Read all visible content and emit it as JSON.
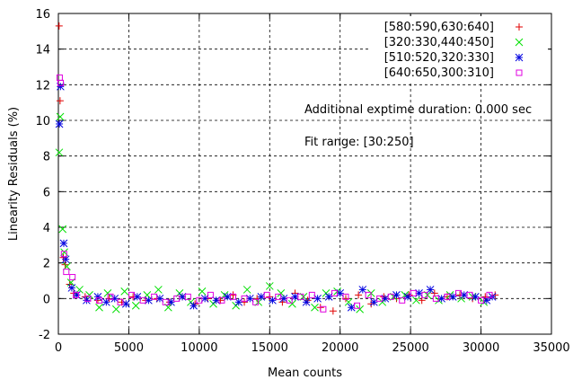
{
  "chart_data": {
    "type": "scatter",
    "xlabel": "Mean counts",
    "ylabel": "Linearity Residuals (%)",
    "xlim": [
      0,
      35000
    ],
    "ylim": [
      -2,
      16
    ],
    "xticks": [
      "0",
      "5000",
      "10000",
      "15000",
      "20000",
      "25000",
      "30000",
      "35000"
    ],
    "yticks": [
      "-2",
      "0",
      "2",
      "4",
      "6",
      "8",
      "10",
      "12",
      "14",
      "16"
    ],
    "grid": true,
    "legend_position": "top-right",
    "annotations": [
      "Additional exptime duration: 0.000 sec",
      "Fit range: [30:250]"
    ],
    "series": [
      {
        "name": "[580:590,630:640]",
        "color": "#e00000",
        "marker": "plus",
        "points": [
          [
            50,
            15.3
          ],
          [
            120,
            11.1
          ],
          [
            350,
            2.3
          ],
          [
            480,
            1.9
          ],
          [
            800,
            0.8
          ],
          [
            1100,
            0.3
          ],
          [
            1900,
            0.1
          ],
          [
            2800,
            -0.1
          ],
          [
            3600,
            0.0
          ],
          [
            4500,
            -0.2
          ],
          [
            5300,
            0.1
          ],
          [
            6200,
            -0.1
          ],
          [
            7000,
            0.0
          ],
          [
            7900,
            -0.2
          ],
          [
            8800,
            0.1
          ],
          [
            9700,
            -0.3
          ],
          [
            10600,
            0.0
          ],
          [
            11500,
            -0.1
          ],
          [
            12400,
            0.2
          ],
          [
            13200,
            -0.2
          ],
          [
            14100,
            0.0
          ],
          [
            15000,
            0.1
          ],
          [
            15900,
            -0.2
          ],
          [
            16800,
            0.3
          ],
          [
            17700,
            -0.1
          ],
          [
            18600,
            -0.5
          ],
          [
            19500,
            -0.7
          ],
          [
            20400,
            0.0
          ],
          [
            21300,
            0.2
          ],
          [
            22200,
            -0.3
          ],
          [
            23100,
            0.1
          ],
          [
            24000,
            0.0
          ],
          [
            24900,
            0.2
          ],
          [
            25800,
            -0.1
          ],
          [
            26700,
            0.3
          ],
          [
            27600,
            0.1
          ],
          [
            28500,
            0.2
          ],
          [
            29400,
            0.0
          ],
          [
            30300,
            0.1
          ],
          [
            31000,
            0.2
          ]
        ]
      },
      {
        "name": "[320:330,440:450]",
        "color": "#00e000",
        "marker": "cross",
        "points": [
          [
            60,
            8.2
          ],
          [
            130,
            10.2
          ],
          [
            300,
            3.9
          ],
          [
            420,
            2.6
          ],
          [
            600,
            1.8
          ],
          [
            900,
            0.9
          ],
          [
            1500,
            0.5
          ],
          [
            2200,
            0.2
          ],
          [
            2900,
            -0.5
          ],
          [
            3500,
            0.3
          ],
          [
            4100,
            -0.6
          ],
          [
            4700,
            0.4
          ],
          [
            5500,
            -0.4
          ],
          [
            6300,
            0.2
          ],
          [
            7100,
            0.5
          ],
          [
            7800,
            -0.5
          ],
          [
            8600,
            0.3
          ],
          [
            9400,
            -0.2
          ],
          [
            10200,
            0.4
          ],
          [
            11000,
            -0.3
          ],
          [
            11800,
            0.2
          ],
          [
            12600,
            -0.4
          ],
          [
            13400,
            0.5
          ],
          [
            14200,
            -0.2
          ],
          [
            15000,
            0.7
          ],
          [
            15800,
            0.3
          ],
          [
            16600,
            -0.3
          ],
          [
            17400,
            0.1
          ],
          [
            18200,
            -0.5
          ],
          [
            19000,
            0.3
          ],
          [
            19800,
            0.4
          ],
          [
            20600,
            -0.2
          ],
          [
            21400,
            -0.6
          ],
          [
            22200,
            0.3
          ],
          [
            23000,
            -0.2
          ],
          [
            23800,
            0.1
          ],
          [
            24600,
            0.2
          ],
          [
            25400,
            -0.1
          ],
          [
            26200,
            0.2
          ],
          [
            27000,
            -0.1
          ],
          [
            27800,
            0.2
          ],
          [
            28600,
            0.0
          ],
          [
            29400,
            0.1
          ],
          [
            30200,
            -0.2
          ]
        ]
      },
      {
        "name": "[510:520,320:330]",
        "color": "#0000e0",
        "marker": "star",
        "points": [
          [
            70,
            9.8
          ],
          [
            150,
            11.9
          ],
          [
            380,
            3.1
          ],
          [
            520,
            2.2
          ],
          [
            950,
            0.6
          ],
          [
            1300,
            0.2
          ],
          [
            2000,
            -0.1
          ],
          [
            2800,
            0.1
          ],
          [
            3400,
            -0.2
          ],
          [
            4000,
            0.0
          ],
          [
            4800,
            -0.3
          ],
          [
            5600,
            0.1
          ],
          [
            6400,
            -0.1
          ],
          [
            7200,
            0.0
          ],
          [
            8000,
            -0.2
          ],
          [
            8800,
            0.1
          ],
          [
            9600,
            -0.4
          ],
          [
            10400,
            0.0
          ],
          [
            11200,
            -0.1
          ],
          [
            12000,
            0.1
          ],
          [
            12800,
            -0.2
          ],
          [
            13600,
            0.0
          ],
          [
            14400,
            0.1
          ],
          [
            15200,
            -0.1
          ],
          [
            16000,
            0.0
          ],
          [
            16800,
            0.1
          ],
          [
            17600,
            -0.2
          ],
          [
            18400,
            0.0
          ],
          [
            19200,
            0.1
          ],
          [
            20000,
            0.3
          ],
          [
            20800,
            -0.5
          ],
          [
            21600,
            0.5
          ],
          [
            22400,
            -0.2
          ],
          [
            23200,
            0.0
          ],
          [
            24000,
            0.2
          ],
          [
            24800,
            0.1
          ],
          [
            25600,
            0.3
          ],
          [
            26400,
            0.5
          ],
          [
            27200,
            0.0
          ],
          [
            28000,
            0.1
          ],
          [
            28800,
            0.2
          ],
          [
            29600,
            0.1
          ],
          [
            30400,
            -0.1
          ],
          [
            30800,
            0.1
          ]
        ]
      },
      {
        "name": "[640:650,300:310]",
        "color": "#e000e0",
        "marker": "square",
        "points": [
          [
            90,
            12.4
          ],
          [
            160,
            12.1
          ],
          [
            400,
            2.5
          ],
          [
            560,
            1.5
          ],
          [
            1000,
            1.2
          ],
          [
            1250,
            0.2
          ],
          [
            2100,
            0.0
          ],
          [
            2900,
            -0.1
          ],
          [
            3700,
            0.1
          ],
          [
            4400,
            -0.2
          ],
          [
            5200,
            0.2
          ],
          [
            6000,
            -0.1
          ],
          [
            6800,
            0.1
          ],
          [
            7600,
            -0.2
          ],
          [
            8400,
            0.0
          ],
          [
            9200,
            0.1
          ],
          [
            10000,
            -0.1
          ],
          [
            10800,
            0.2
          ],
          [
            11600,
            -0.1
          ],
          [
            12400,
            0.1
          ],
          [
            13200,
            0.0
          ],
          [
            14000,
            -0.2
          ],
          [
            14800,
            0.2
          ],
          [
            15600,
            0.1
          ],
          [
            16400,
            -0.1
          ],
          [
            17200,
            0.1
          ],
          [
            18000,
            0.2
          ],
          [
            18800,
            -0.6
          ],
          [
            19600,
            0.3
          ],
          [
            20400,
            0.1
          ],
          [
            21200,
            -0.4
          ],
          [
            22000,
            0.2
          ],
          [
            22800,
            0.0
          ],
          [
            23600,
            0.1
          ],
          [
            24400,
            -0.1
          ],
          [
            25200,
            0.3
          ],
          [
            26000,
            0.2
          ],
          [
            26800,
            0.0
          ],
          [
            27600,
            0.1
          ],
          [
            28400,
            0.3
          ],
          [
            29200,
            0.2
          ],
          [
            30000,
            -0.1
          ],
          [
            30600,
            0.2
          ]
        ]
      }
    ]
  }
}
